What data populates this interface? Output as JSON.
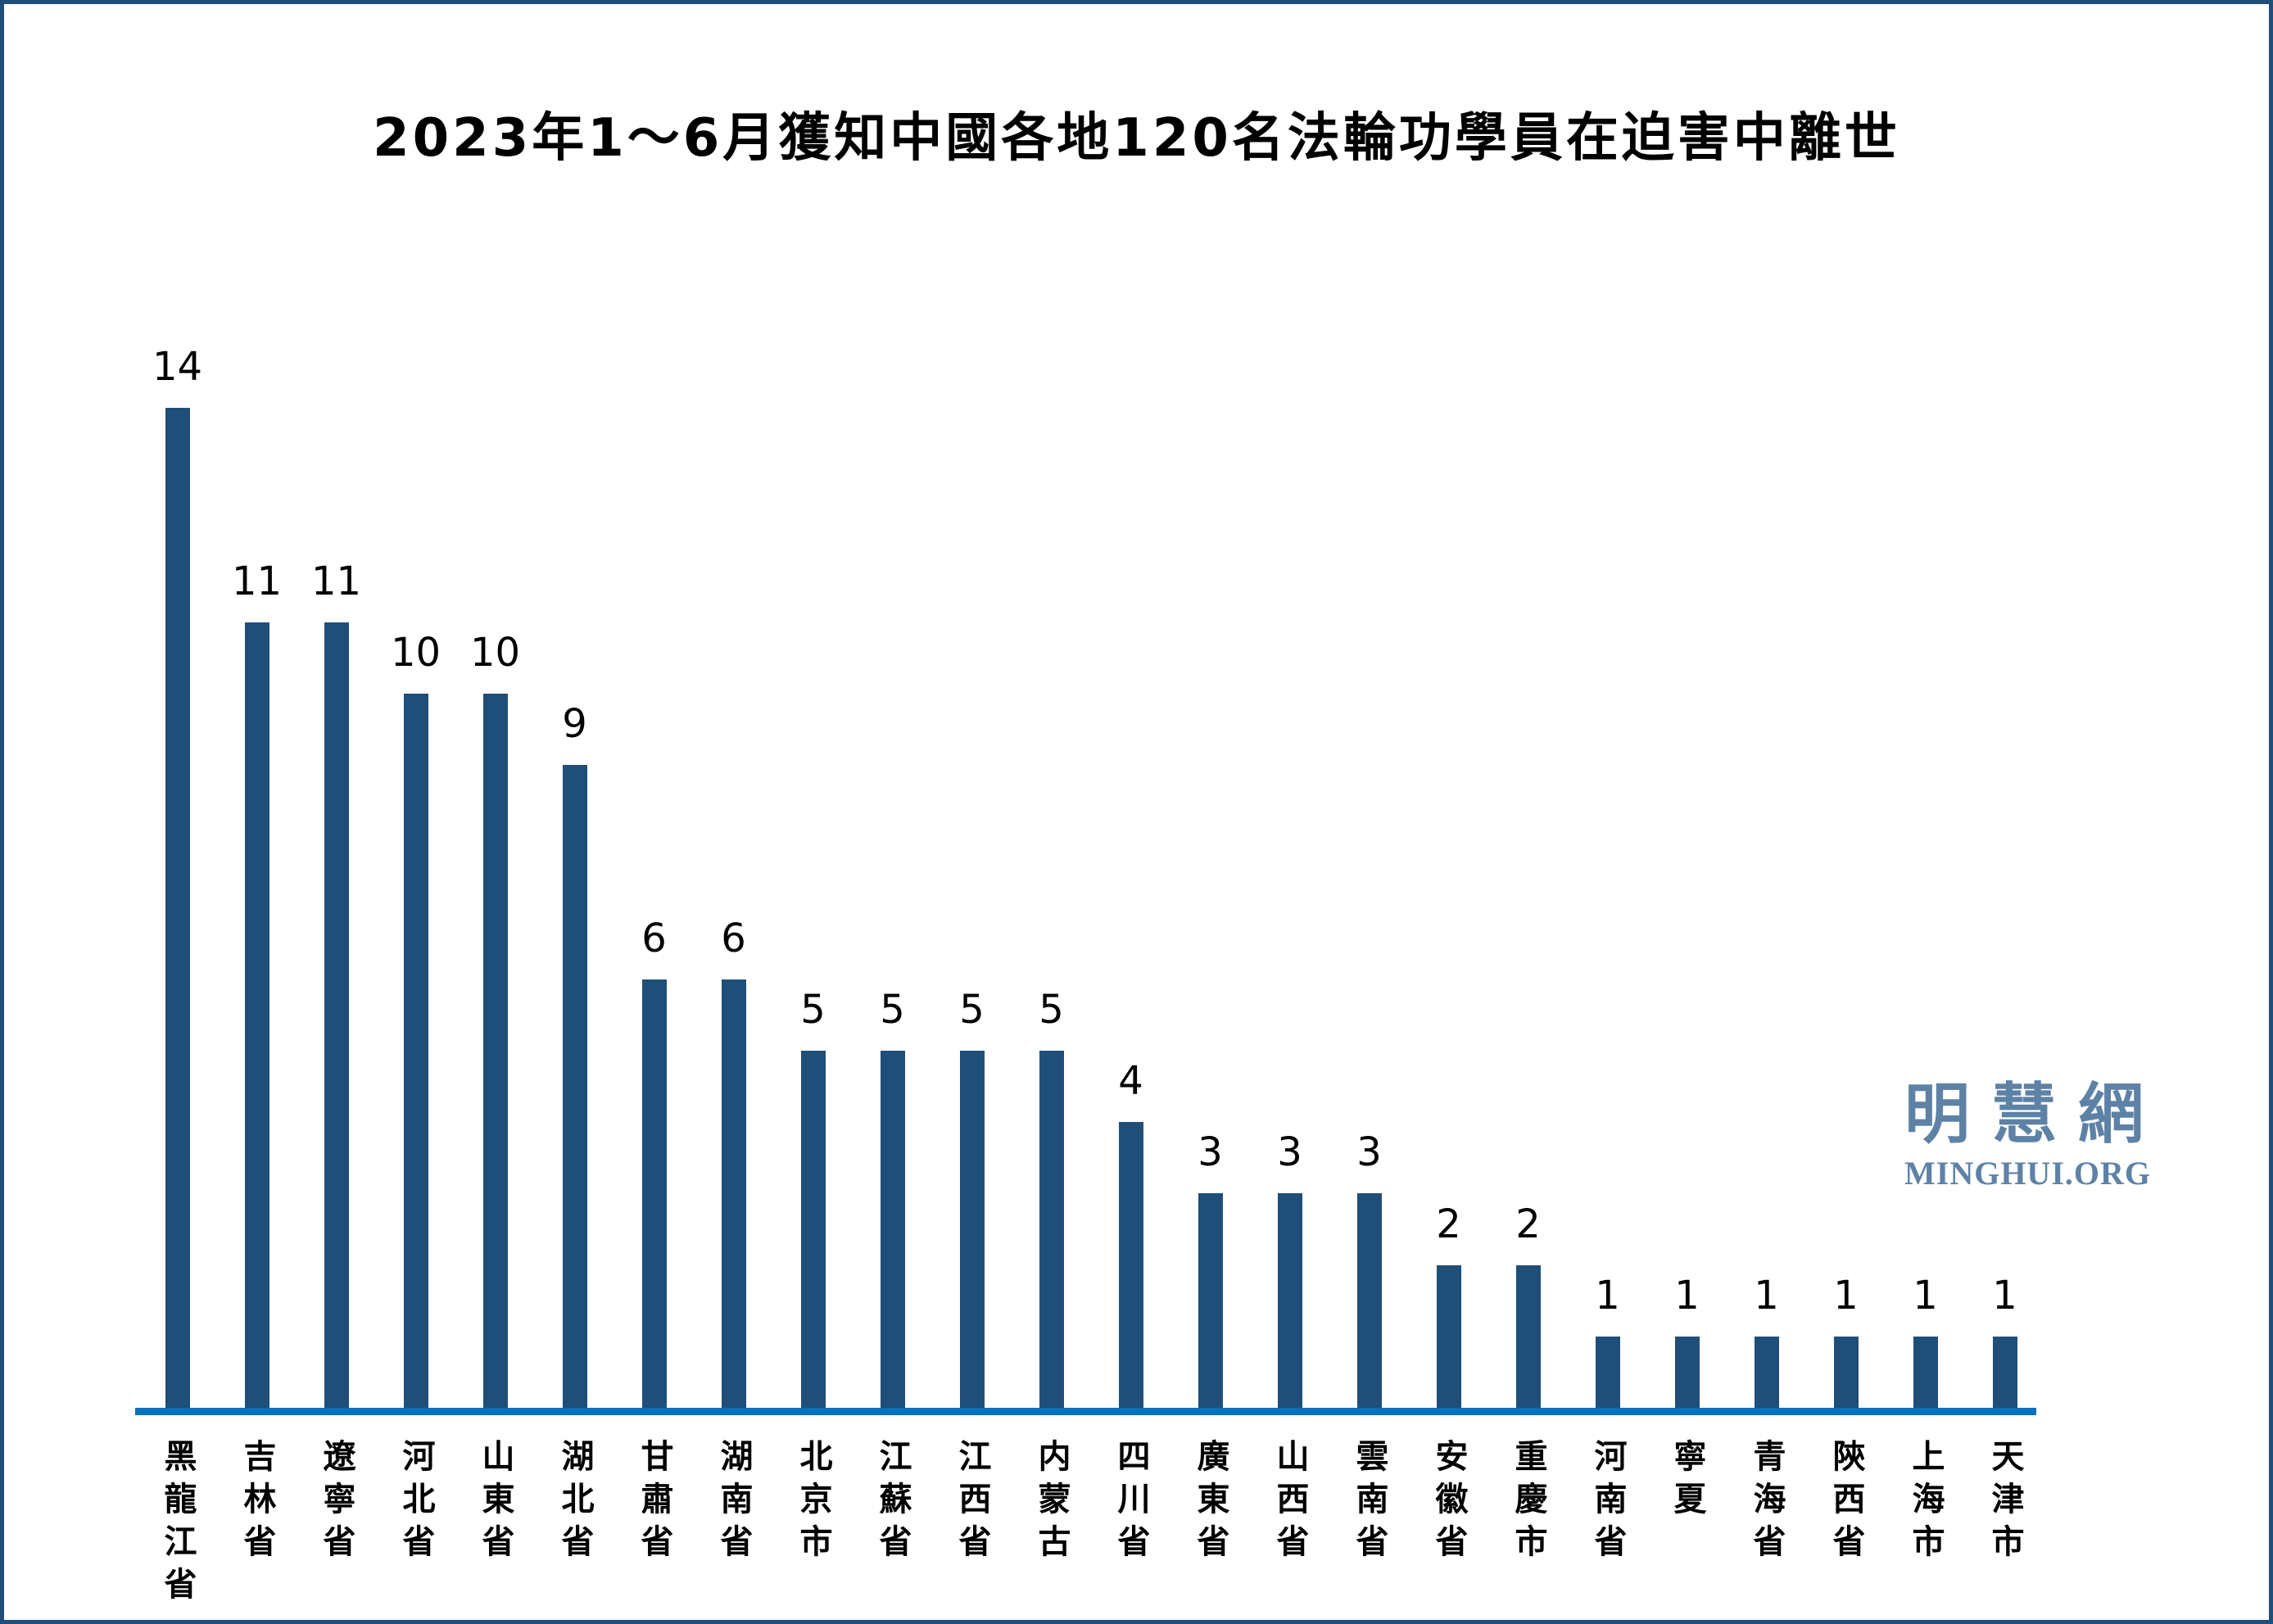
{
  "page": {
    "border_color": "#1f4e79",
    "background_color": "#ffffff"
  },
  "logo": {
    "chinese": "明慧網",
    "english": "MINGHUI.ORG",
    "color": "#5e82a6"
  },
  "chart_data": {
    "type": "bar",
    "title": "2023年1～6月獲知中國各地120名法輪功學員在迫害中離世",
    "categories": [
      "黑龍江省",
      "吉林省",
      "遼寧省",
      "河北省",
      "山東省",
      "湖北省",
      "甘肅省",
      "湖南省",
      "北京市",
      "江蘇省",
      "江西省",
      "内蒙古",
      "四川省",
      "廣東省",
      "山西省",
      "雲南省",
      "安徽省",
      "重慶市",
      "河南省",
      "寧夏",
      "青海省",
      "陝西省",
      "上海市",
      "天津市"
    ],
    "values": [
      14,
      11,
      11,
      10,
      10,
      9,
      6,
      6,
      5,
      5,
      5,
      5,
      4,
      3,
      3,
      3,
      2,
      2,
      1,
      1,
      1,
      1,
      1,
      1
    ],
    "total": 120,
    "xlabel": "",
    "ylabel": "",
    "ylim": [
      0,
      14
    ],
    "grid": false,
    "legend": false,
    "value_labels": true,
    "bar_color": "#1f4e79",
    "baseline_color": "#0070c0",
    "label_color": "#000000"
  }
}
